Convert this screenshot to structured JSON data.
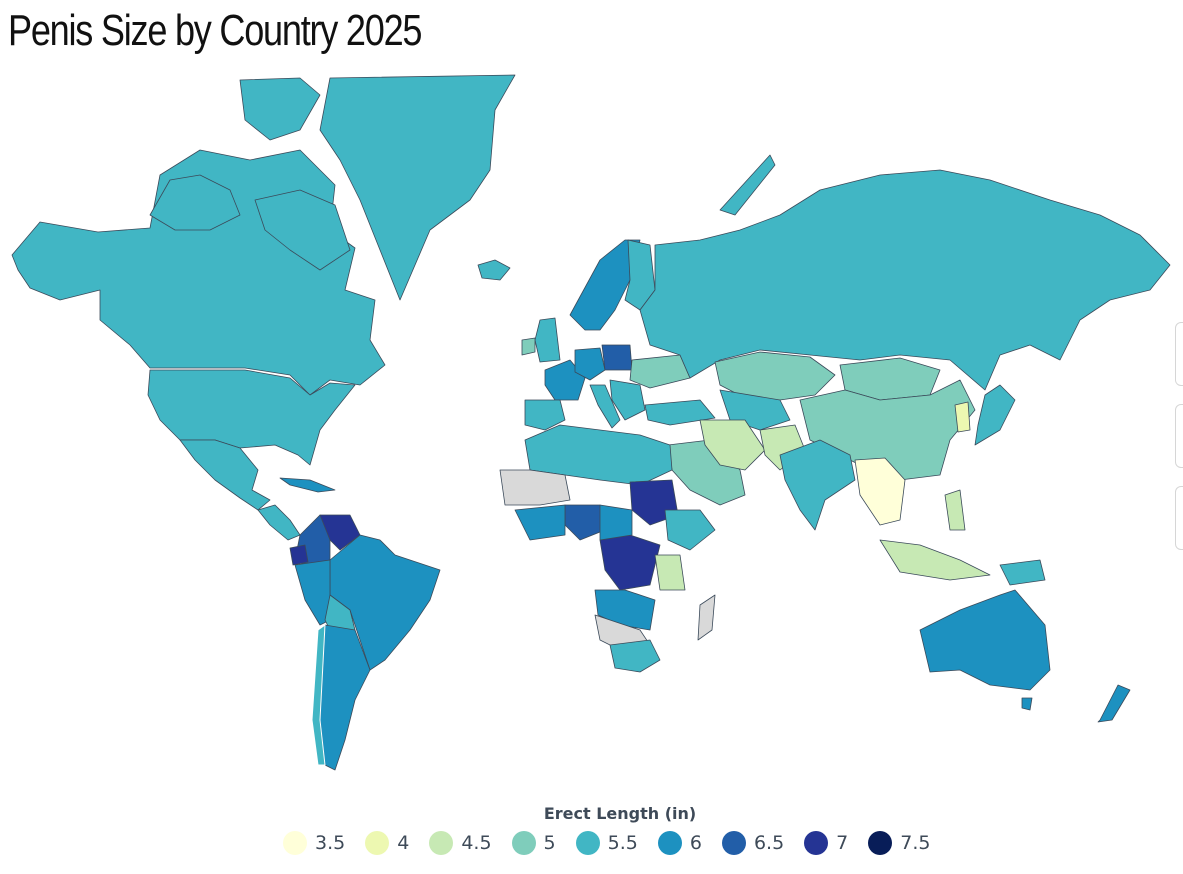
{
  "page": {
    "title": "Penis Size by Country 2025"
  },
  "legend": {
    "title": "Erect Length (in)",
    "items": [
      {
        "label": "3.5",
        "color": "#ffffd9"
      },
      {
        "label": "4",
        "color": "#edf8b1"
      },
      {
        "label": "4.5",
        "color": "#c7e9b4"
      },
      {
        "label": "5",
        "color": "#7fcdbb"
      },
      {
        "label": "5.5",
        "color": "#41b6c4"
      },
      {
        "label": "6",
        "color": "#1d91c0"
      },
      {
        "label": "6.5",
        "color": "#225ea8"
      },
      {
        "label": "7",
        "color": "#253494"
      },
      {
        "label": "7.5",
        "color": "#081d58"
      }
    ]
  },
  "colors": {
    "no_data": "#d9d9d9",
    "border": "#3b4a5a"
  }
}
